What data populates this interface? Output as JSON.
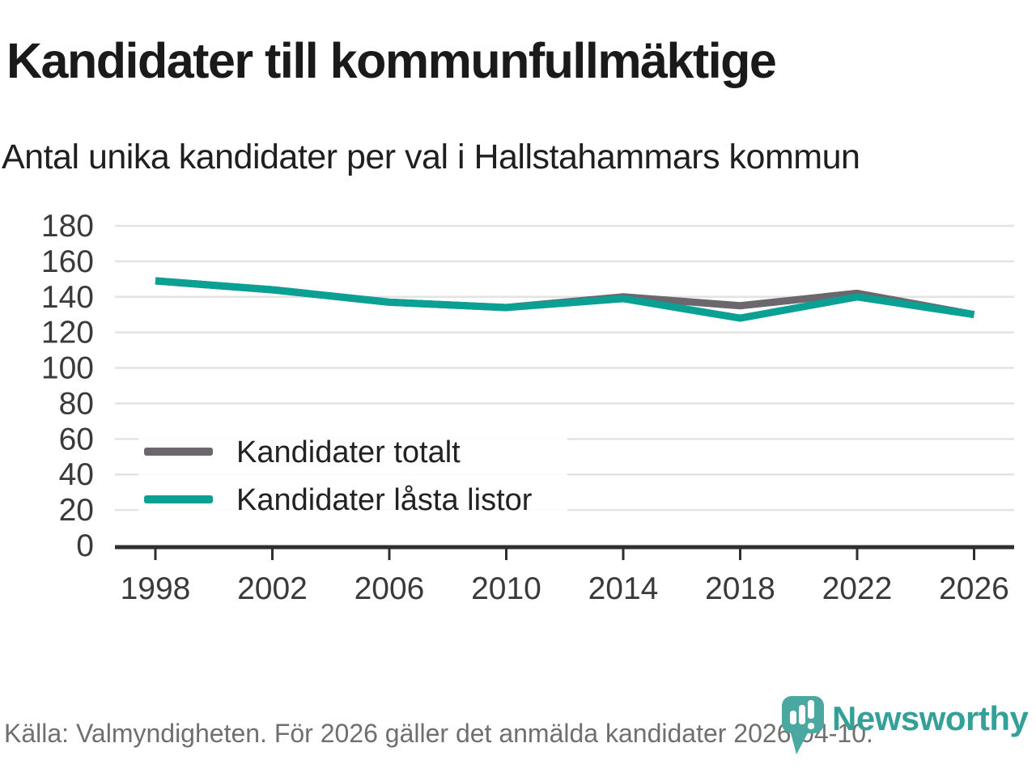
{
  "header": {
    "title": "Kandidater till kommunfullmäktige",
    "subtitle": "Antal unika kandidater per val i Hallstahammars kommun"
  },
  "chart_data": {
    "type": "line",
    "title": "Kandidater till kommunfullmäktige",
    "subtitle": "Antal unika kandidater per val i Hallstahammars kommun",
    "categories": [
      "1998",
      "2002",
      "2006",
      "2010",
      "2014",
      "2018",
      "2022",
      "2026"
    ],
    "series": [
      {
        "name": "Kandidater totalt",
        "color": "#6b676c",
        "values": [
          149,
          144,
          137,
          134,
          140,
          135,
          142,
          130
        ]
      },
      {
        "name": "Kandidater låsta listor",
        "color": "#0aa094",
        "values": [
          149,
          144,
          137,
          134,
          139,
          128,
          140,
          130
        ]
      }
    ],
    "ylim": [
      0,
      180
    ],
    "yticks": [
      0,
      20,
      40,
      60,
      80,
      100,
      120,
      140,
      160,
      180
    ],
    "grid": "horizontal",
    "legend_position": "inside-bottom-left"
  },
  "footer": {
    "source": "Källa: Valmyndigheten. För 2026 gäller det anmälda kandidater 2026-04-10.",
    "brand": "Newsworthy"
  },
  "colors": {
    "grid": "#e3e3e3",
    "axis": "#2f2f2f",
    "tick_label": "#3a3a3a",
    "legend_label": "#222222",
    "logo_pin": "#4aa8a1",
    "logo_text": "#34a098"
  }
}
